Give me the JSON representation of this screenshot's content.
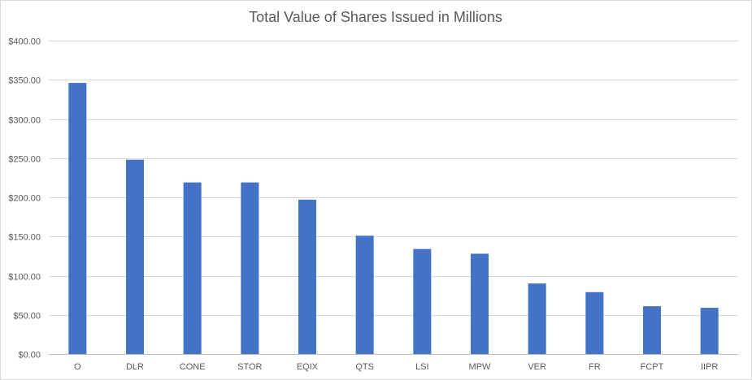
{
  "chart_data": {
    "type": "bar",
    "title": "Total Value of Shares Issued in Millions",
    "xlabel": "",
    "ylabel": "",
    "categories": [
      "O",
      "DLR",
      "CONE",
      "STOR",
      "EQIX",
      "QTS",
      "LSI",
      "MPW",
      "VER",
      "FR",
      "FCPT",
      "IIPR"
    ],
    "values": [
      346,
      248,
      219,
      219,
      197,
      151,
      134,
      128,
      90,
      79,
      61,
      59
    ],
    "ylim": [
      0,
      400
    ],
    "yticks": [
      "$0.00",
      "$50.00",
      "$100.00",
      "$150.00",
      "$200.00",
      "$250.00",
      "$300.00",
      "$350.00",
      "$400.00"
    ],
    "ytick_values": [
      0,
      50,
      100,
      150,
      200,
      250,
      300,
      350,
      400
    ],
    "grid": true,
    "legend": "none",
    "bar_color": "#4472C4"
  }
}
